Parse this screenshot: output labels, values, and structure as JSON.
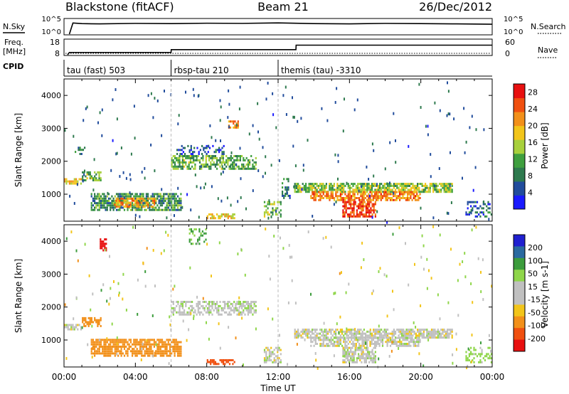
{
  "header": {
    "title": "Blackstone (fitACF)",
    "beam": "Beam 21",
    "date": "26/Dec/2012"
  },
  "side_labels": {
    "nsky": "N.Sky",
    "nsearch": "N.Search",
    "freq_line1": "Freq.",
    "freq_line2": "[MHz]",
    "nave": "Nave",
    "cpid": "CPID"
  },
  "noise_axis": {
    "left_ticks": [
      "10^5",
      "10^0"
    ],
    "right_ticks": [
      "10^5",
      "10^0"
    ]
  },
  "freq_axis": {
    "left_ticks": [
      "18",
      "8"
    ],
    "right_ticks": [
      "60",
      "0"
    ]
  },
  "cpid_segments": [
    {
      "label": "tau (fast) 503",
      "start_hour": 0
    },
    {
      "label": "rbsp-tau 210",
      "start_hour": 6
    },
    {
      "label": "themis (tau) -3310",
      "start_hour": 12
    }
  ],
  "colors": {
    "power": [
      "#1a1aff",
      "#214c9c",
      "#2e7a4e",
      "#3f9f3f",
      "#a8d03c",
      "#f2c51a",
      "#f2901a",
      "#f05010",
      "#e81010"
    ],
    "velocity": [
      "#e81010",
      "#f05010",
      "#f2901a",
      "#f2c51a",
      "#c0c0c0",
      "#c0c0c0",
      "#8fd64a",
      "#3c9c3c",
      "#2a6aa0",
      "#2020d0"
    ],
    "grey": "#c0c0c0"
  },
  "chart_data": [
    {
      "type": "line",
      "title": "N.Sky / N.Search",
      "x_unit": "hour UT",
      "y_scale": "log",
      "series": [
        {
          "name": "N.Sky",
          "x": [
            0.5,
            1,
            2,
            4,
            6,
            8,
            10,
            12,
            14,
            16,
            18,
            20,
            22,
            24
          ],
          "values": [
            8000,
            5000,
            4000,
            6000,
            5000,
            7000,
            6000,
            9000,
            5000,
            4000,
            6000,
            5000,
            4000,
            3000
          ]
        }
      ]
    },
    {
      "type": "line",
      "title": "Freq. [MHz] / Nave",
      "x_unit": "hour UT",
      "series": [
        {
          "name": "Freq. [MHz]",
          "x": [
            0.2,
            0.3,
            6.0,
            6.01,
            13.0,
            13.01,
            24.0
          ],
          "values": [
            8,
            9.8,
            9.8,
            12,
            12,
            15.5,
            15.5
          ]
        }
      ]
    },
    {
      "type": "heatmap",
      "title": "Power [dB]",
      "xlabel": "Time UT",
      "ylabel": "Slant Range [km]",
      "x_ticks": [
        "00:00",
        "04:00",
        "08:00",
        "12:00",
        "16:00",
        "20:00",
        "00:00"
      ],
      "xlim": [
        0,
        24
      ],
      "y_ticks": [
        1000,
        2000,
        3000,
        4000
      ],
      "ylim": [
        180,
        4500
      ],
      "colorbar": {
        "label": "Power [dB]",
        "ticks": [
          4,
          8,
          12,
          16,
          20,
          24,
          28
        ],
        "range": [
          0,
          30
        ]
      },
      "regions": [
        {
          "t": [
            0.0,
            1.0
          ],
          "r": [
            1300,
            1500
          ],
          "value": 18,
          "density": 0.7
        },
        {
          "t": [
            1.0,
            2.1
          ],
          "r": [
            1400,
            1700
          ],
          "value": 12,
          "density": 0.6
        },
        {
          "t": [
            0.6,
            1.2
          ],
          "r": [
            2200,
            2450
          ],
          "value": 8,
          "density": 0.5
        },
        {
          "t": [
            1.5,
            6.6
          ],
          "r": [
            500,
            1050
          ],
          "value": 10,
          "density": 0.75
        },
        {
          "t": [
            2.8,
            5.2
          ],
          "r": [
            600,
            900
          ],
          "value": 21,
          "density": 0.5
        },
        {
          "t": [
            6.0,
            10.8
          ],
          "r": [
            1750,
            2200
          ],
          "value": 12,
          "density": 0.6
        },
        {
          "t": [
            6.3,
            9.0
          ],
          "r": [
            2200,
            2500
          ],
          "value": 6,
          "density": 0.35
        },
        {
          "t": [
            8.0,
            9.6
          ],
          "r": [
            250,
            420
          ],
          "value": 18,
          "density": 0.6
        },
        {
          "t": [
            9.2,
            9.8
          ],
          "r": [
            3000,
            3250
          ],
          "value": 22,
          "density": 0.6
        },
        {
          "t": [
            11.2,
            12.2
          ],
          "r": [
            300,
            800
          ],
          "value": 14,
          "density": 0.5
        },
        {
          "t": [
            12.2,
            12.7
          ],
          "r": [
            800,
            1500
          ],
          "value": 8,
          "density": 0.4
        },
        {
          "t": [
            12.9,
            21.8
          ],
          "r": [
            1050,
            1350
          ],
          "value": 14,
          "density": 0.75
        },
        {
          "t": [
            13.8,
            20.0
          ],
          "r": [
            800,
            1100
          ],
          "value": 22,
          "density": 0.7
        },
        {
          "t": [
            15.6,
            17.5
          ],
          "r": [
            300,
            800
          ],
          "value": 26,
          "density": 0.7
        },
        {
          "t": [
            22.5,
            24.0
          ],
          "r": [
            300,
            800
          ],
          "value": 6,
          "density": 0.4
        }
      ]
    },
    {
      "type": "heatmap",
      "title": "Velocity [m s-1]",
      "xlabel": "Time UT",
      "ylabel": "Slant Range [km]",
      "x_ticks": [
        "00:00",
        "04:00",
        "08:00",
        "12:00",
        "16:00",
        "20:00",
        "00:00"
      ],
      "xlim": [
        0,
        24
      ],
      "y_ticks": [
        1000,
        2000,
        3000,
        4000
      ],
      "ylim": [
        180,
        4500
      ],
      "colorbar": {
        "label": "Velocity [m s-1]",
        "ticks": [
          "200",
          "100",
          "50",
          "15",
          "-15",
          "-50",
          "-100",
          "-200"
        ]
      },
      "regions": [
        {
          "t": [
            0.0,
            1.0
          ],
          "r": [
            1300,
            1500
          ],
          "value": 0,
          "density": 0.7
        },
        {
          "t": [
            1.0,
            2.1
          ],
          "r": [
            1400,
            1700
          ],
          "value": -70,
          "density": 0.5
        },
        {
          "t": [
            1.5,
            6.6
          ],
          "r": [
            500,
            1050
          ],
          "value": -80,
          "density": 0.75
        },
        {
          "t": [
            2.0,
            2.4
          ],
          "r": [
            3700,
            4100
          ],
          "value": -220,
          "density": 0.6
        },
        {
          "t": [
            6.0,
            10.8
          ],
          "r": [
            1750,
            2200
          ],
          "value": 5,
          "density": 0.6
        },
        {
          "t": [
            7.0,
            8.0
          ],
          "r": [
            3900,
            4400
          ],
          "value": 60,
          "density": 0.35
        },
        {
          "t": [
            8.0,
            9.6
          ],
          "r": [
            250,
            420
          ],
          "value": -120,
          "density": 0.6
        },
        {
          "t": [
            11.2,
            12.2
          ],
          "r": [
            300,
            800
          ],
          "value": 0,
          "density": 0.5
        },
        {
          "t": [
            12.9,
            21.8
          ],
          "r": [
            1050,
            1350
          ],
          "value": 0,
          "density": 0.75
        },
        {
          "t": [
            13.8,
            20.0
          ],
          "r": [
            800,
            1100
          ],
          "value": 0,
          "density": 0.7
        },
        {
          "t": [
            15.6,
            17.5
          ],
          "r": [
            300,
            800
          ],
          "value": 0,
          "density": 0.7
        },
        {
          "t": [
            22.5,
            24.0
          ],
          "r": [
            300,
            800
          ],
          "value": 30,
          "density": 0.4
        }
      ]
    }
  ]
}
